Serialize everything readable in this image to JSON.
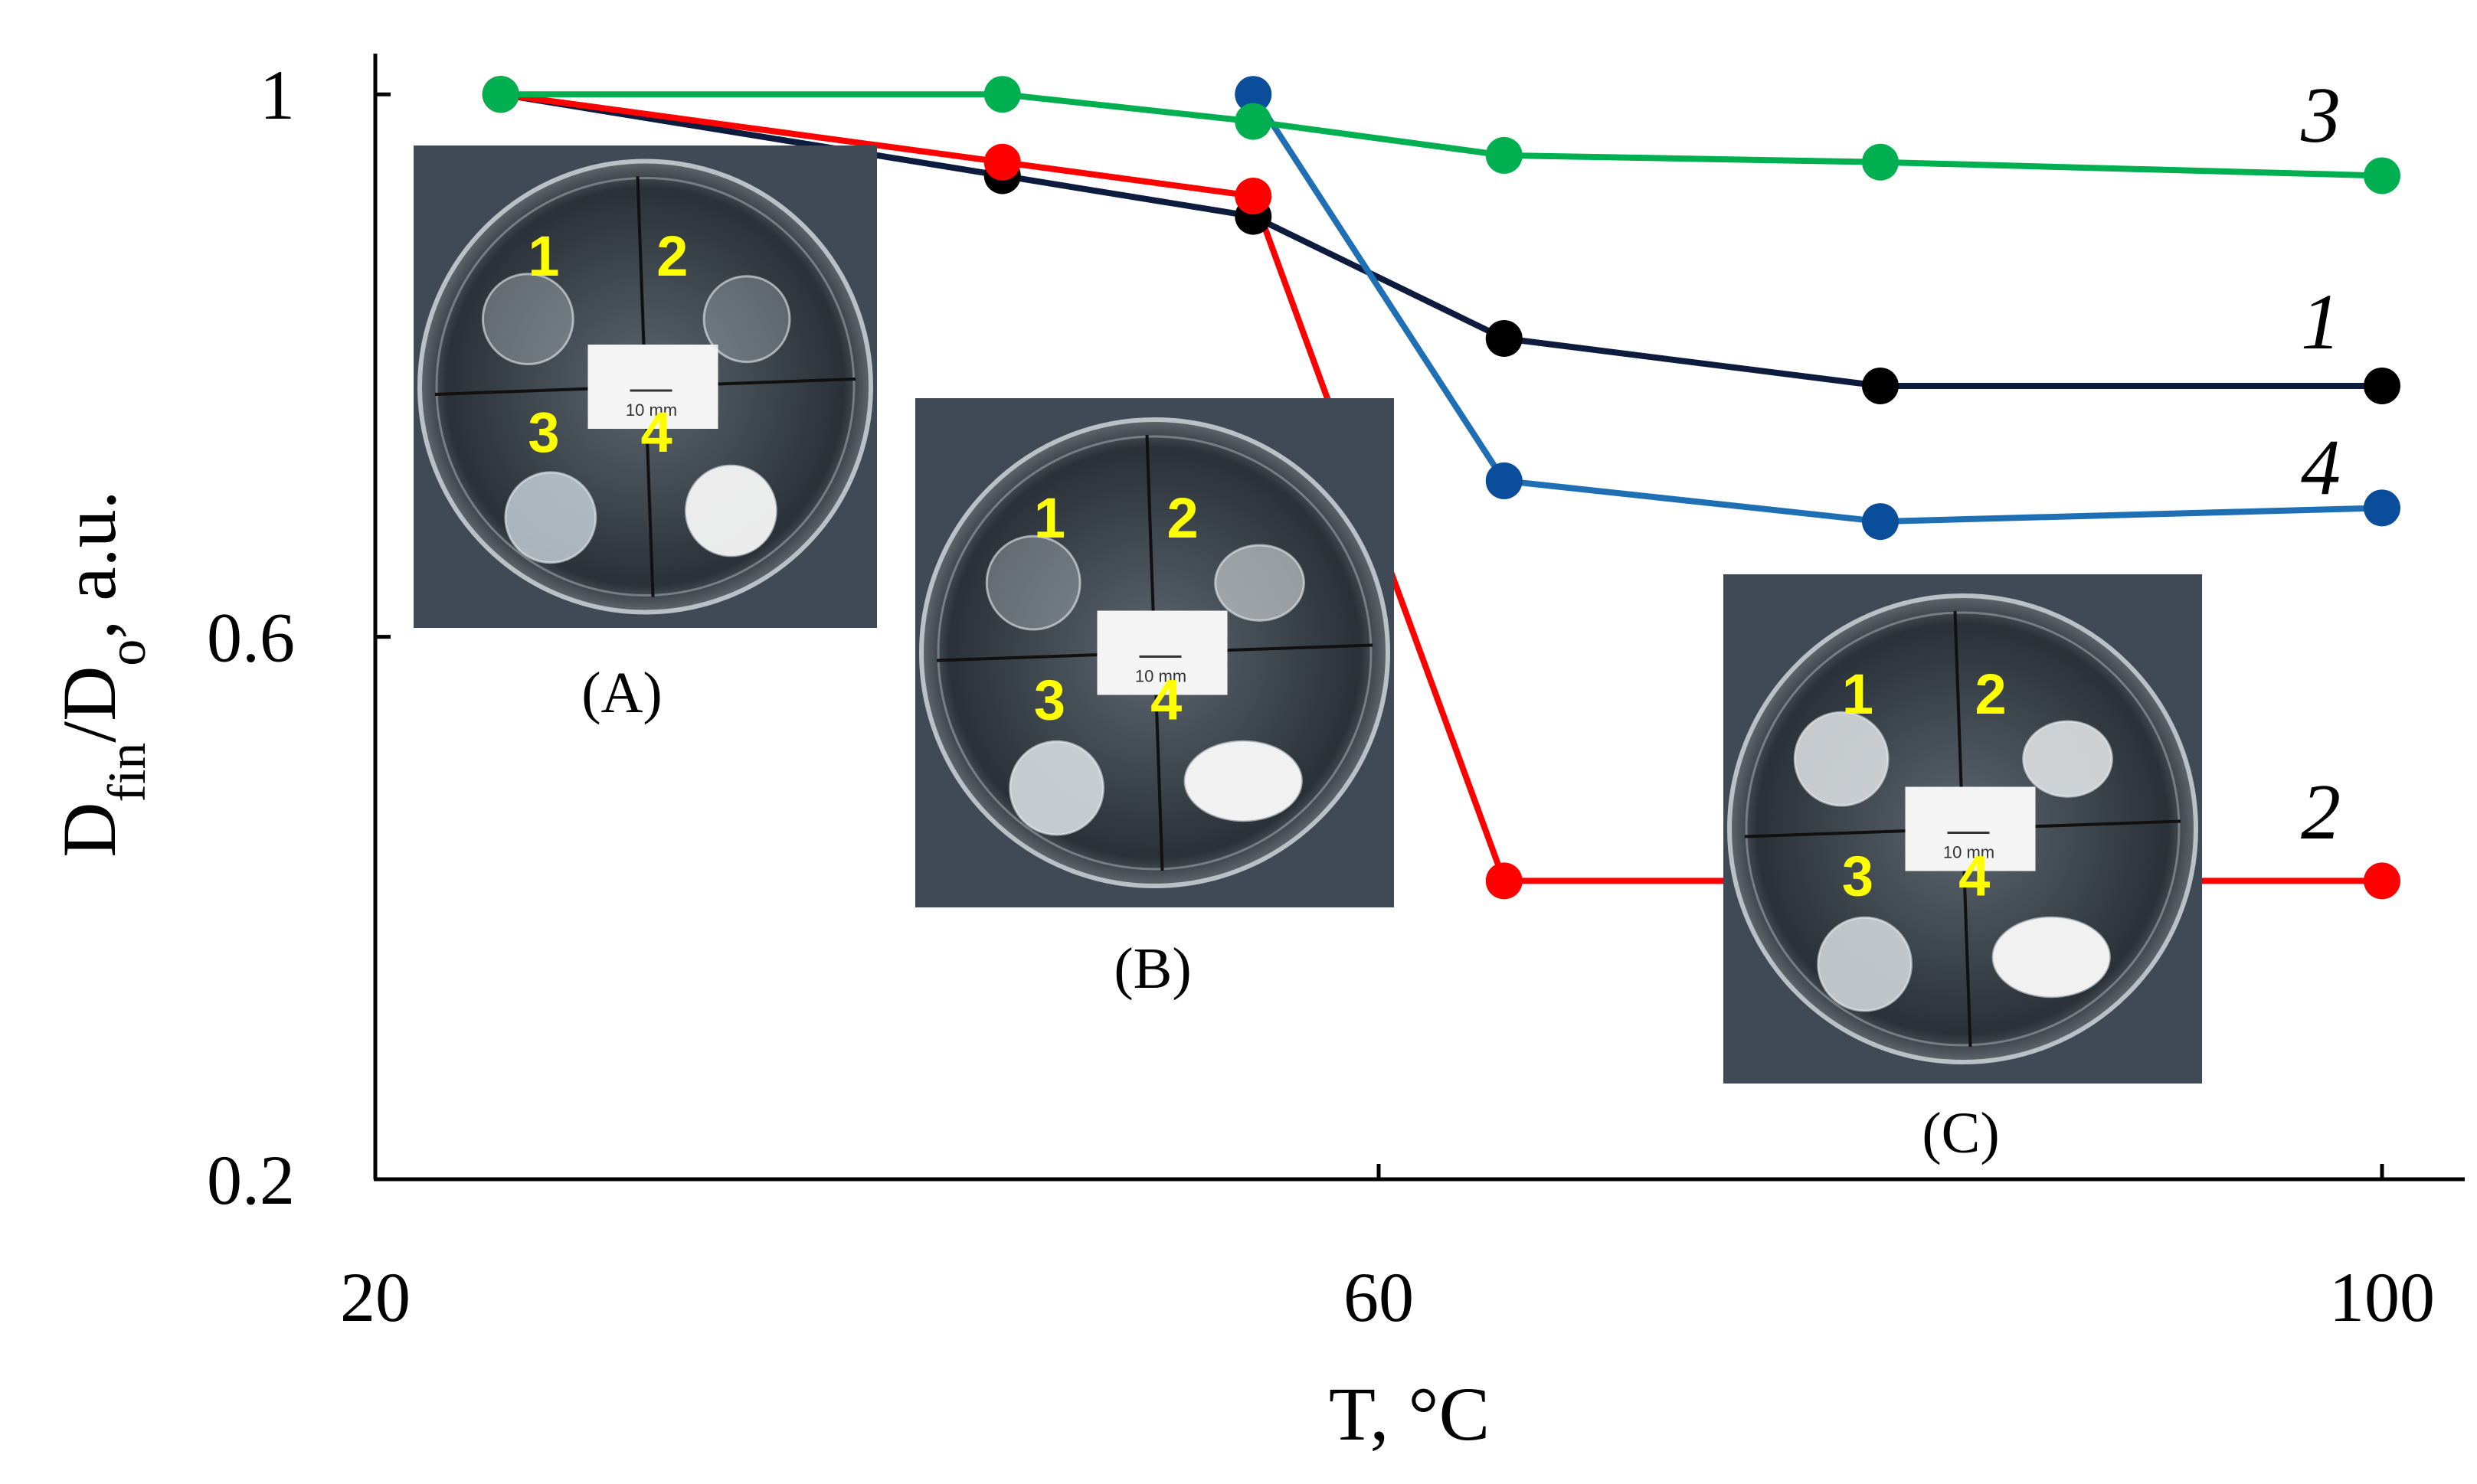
{
  "chart_data": {
    "type": "line",
    "title": "",
    "xlabel": "T, °C",
    "ylabel": "D_fin/D_o, a.u.",
    "xlim": [
      20,
      103
    ],
    "ylim": [
      0.2,
      1.03
    ],
    "xticks": [
      20,
      60,
      100
    ],
    "yticks": [
      0.2,
      0.6,
      1
    ],
    "x_tick_labels": [
      "20",
      "60",
      "100"
    ],
    "y_tick_labels": [
      "0.2",
      "0.6",
      "1"
    ],
    "grid": false,
    "legend": "inline labels at right end of each line",
    "series": [
      {
        "name": "1",
        "color": "#0d1b3e",
        "marker_color": "#000000",
        "x": [
          25,
          45,
          55,
          65,
          80,
          100
        ],
        "y": [
          1.0,
          0.94,
          0.91,
          0.82,
          0.785,
          0.785
        ]
      },
      {
        "name": "2",
        "color": "#ff0000",
        "marker_color": "#ff0000",
        "x": [
          25,
          45,
          55,
          65,
          100
        ],
        "y": [
          1.0,
          0.95,
          0.925,
          0.42,
          0.42
        ]
      },
      {
        "name": "3",
        "color": "#00b050",
        "marker_color": "#00b050",
        "x": [
          25,
          45,
          55,
          65,
          80,
          100
        ],
        "y": [
          1.0,
          1.0,
          0.98,
          0.955,
          0.95,
          0.94
        ]
      },
      {
        "name": "4",
        "color": "#1f6fb5",
        "marker_color": "#0a4e9b",
        "x": [
          55,
          65,
          80,
          100
        ],
        "y": [
          1.0,
          0.715,
          0.685,
          0.695
        ]
      }
    ],
    "insets": [
      {
        "caption": "(A)",
        "sample_labels": [
          "1",
          "2",
          "3",
          "4"
        ],
        "scale_label": "10 mm"
      },
      {
        "caption": "(B)",
        "sample_labels": [
          "1",
          "2",
          "3",
          "4"
        ],
        "scale_label": "10 mm"
      },
      {
        "caption": "(C)",
        "sample_labels": [
          "1",
          "2",
          "3",
          "4"
        ],
        "scale_label": "10 mm"
      }
    ]
  }
}
